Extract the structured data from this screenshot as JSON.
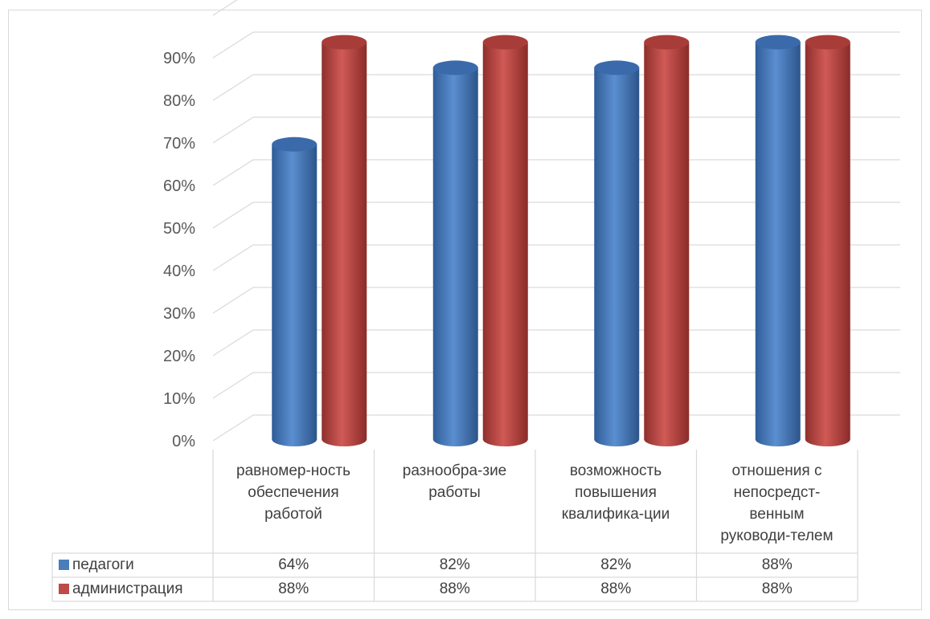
{
  "chart_data": {
    "type": "bar",
    "categories": [
      "равномер-ность обеспечения работой",
      "разнообра-зие работы",
      "возможность повышения квалифика-ции",
      "отношения с непосредст-венным руководи-телем"
    ],
    "category_lines": [
      [
        "равномер-ность",
        "обеспечения",
        "работой"
      ],
      [
        "разнообра-зие",
        "работы"
      ],
      [
        "возможность",
        "повышения",
        "квалифика-ции"
      ],
      [
        "отношения с",
        "непосредст-",
        "венным",
        "руководи-телем"
      ]
    ],
    "series": [
      {
        "name": "педагоги",
        "values": [
          64,
          82,
          82,
          88
        ],
        "labels": [
          "64%",
          "82%",
          "82%",
          "88%"
        ],
        "color": "#4a7ebb"
      },
      {
        "name": "администрация",
        "values": [
          88,
          88,
          88,
          88
        ],
        "labels": [
          "88%",
          "88%",
          "88%",
          "88%"
        ],
        "color": "#be4b48"
      }
    ],
    "ylim": [
      0,
      90
    ],
    "y_ticks": [
      "0%",
      "10%",
      "20%",
      "30%",
      "40%",
      "50%",
      "60%",
      "70%",
      "80%",
      "90%"
    ],
    "grid": true,
    "legend": "data-table",
    "style": "3d-cylinder"
  }
}
